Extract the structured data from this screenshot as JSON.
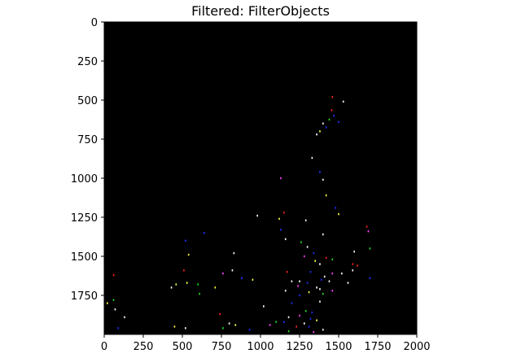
{
  "chart_data": {
    "type": "image",
    "title": "Filtered: FilterObjects",
    "xlabel": "",
    "ylabel": "",
    "xlim": [
      0,
      2000
    ],
    "ylim": [
      2000,
      0
    ],
    "y_inverted": true,
    "background_color": "#000000",
    "x_ticks": [
      0,
      250,
      500,
      750,
      1000,
      1250,
      1500,
      1750,
      2000
    ],
    "y_ticks": [
      0,
      250,
      500,
      750,
      1000,
      1250,
      1500,
      1750
    ],
    "grid": false,
    "legend": "none",
    "point_colors": [
      "#ff2020",
      "#2030ff",
      "#20e020",
      "#ffffff",
      "#ffff40",
      "#ff40ff",
      "#40ffff"
    ],
    "points": [
      {
        "x": 1460,
        "y": 480,
        "c": 0
      },
      {
        "x": 1530,
        "y": 510,
        "c": 3
      },
      {
        "x": 1455,
        "y": 565,
        "c": 0
      },
      {
        "x": 1470,
        "y": 600,
        "c": 1
      },
      {
        "x": 1440,
        "y": 625,
        "c": 2
      },
      {
        "x": 1400,
        "y": 650,
        "c": 3
      },
      {
        "x": 1420,
        "y": 675,
        "c": 1
      },
      {
        "x": 1380,
        "y": 700,
        "c": 4
      },
      {
        "x": 1500,
        "y": 640,
        "c": 1
      },
      {
        "x": 1360,
        "y": 720,
        "c": 3
      },
      {
        "x": 1330,
        "y": 870,
        "c": 3
      },
      {
        "x": 1380,
        "y": 960,
        "c": 1
      },
      {
        "x": 1130,
        "y": 1000,
        "c": 5
      },
      {
        "x": 1400,
        "y": 1010,
        "c": 3
      },
      {
        "x": 1420,
        "y": 1110,
        "c": 4
      },
      {
        "x": 1480,
        "y": 1190,
        "c": 1
      },
      {
        "x": 1500,
        "y": 1230,
        "c": 4
      },
      {
        "x": 1150,
        "y": 1220,
        "c": 0
      },
      {
        "x": 980,
        "y": 1240,
        "c": 3
      },
      {
        "x": 1120,
        "y": 1260,
        "c": 4
      },
      {
        "x": 1290,
        "y": 1270,
        "c": 3
      },
      {
        "x": 1680,
        "y": 1310,
        "c": 0
      },
      {
        "x": 1690,
        "y": 1340,
        "c": 5
      },
      {
        "x": 1130,
        "y": 1330,
        "c": 1
      },
      {
        "x": 1400,
        "y": 1360,
        "c": 3
      },
      {
        "x": 1160,
        "y": 1390,
        "c": 3
      },
      {
        "x": 640,
        "y": 1350,
        "c": 1
      },
      {
        "x": 520,
        "y": 1400,
        "c": 1
      },
      {
        "x": 1260,
        "y": 1410,
        "c": 2
      },
      {
        "x": 1300,
        "y": 1440,
        "c": 3
      },
      {
        "x": 1700,
        "y": 1450,
        "c": 2
      },
      {
        "x": 1340,
        "y": 1480,
        "c": 1
      },
      {
        "x": 1600,
        "y": 1470,
        "c": 3
      },
      {
        "x": 830,
        "y": 1480,
        "c": 3
      },
      {
        "x": 540,
        "y": 1490,
        "c": 4
      },
      {
        "x": 1280,
        "y": 1500,
        "c": 5
      },
      {
        "x": 1420,
        "y": 1510,
        "c": 0
      },
      {
        "x": 1460,
        "y": 1520,
        "c": 2
      },
      {
        "x": 1350,
        "y": 1530,
        "c": 4
      },
      {
        "x": 1380,
        "y": 1550,
        "c": 3
      },
      {
        "x": 1590,
        "y": 1550,
        "c": 0
      },
      {
        "x": 1620,
        "y": 1560,
        "c": 0
      },
      {
        "x": 1590,
        "y": 1590,
        "c": 3
      },
      {
        "x": 510,
        "y": 1590,
        "c": 0
      },
      {
        "x": 820,
        "y": 1590,
        "c": 3
      },
      {
        "x": 1170,
        "y": 1600,
        "c": 0
      },
      {
        "x": 1320,
        "y": 1600,
        "c": 1
      },
      {
        "x": 1460,
        "y": 1610,
        "c": 5
      },
      {
        "x": 1520,
        "y": 1610,
        "c": 3
      },
      {
        "x": 1410,
        "y": 1630,
        "c": 3
      },
      {
        "x": 1700,
        "y": 1640,
        "c": 1
      },
      {
        "x": 1390,
        "y": 1650,
        "c": 1
      },
      {
        "x": 1250,
        "y": 1660,
        "c": 3
      },
      {
        "x": 1440,
        "y": 1660,
        "c": 3
      },
      {
        "x": 60,
        "y": 1620,
        "c": 0
      },
      {
        "x": 760,
        "y": 1610,
        "c": 5
      },
      {
        "x": 880,
        "y": 1640,
        "c": 1
      },
      {
        "x": 950,
        "y": 1650,
        "c": 4
      },
      {
        "x": 1200,
        "y": 1660,
        "c": 3
      },
      {
        "x": 1300,
        "y": 1670,
        "c": 1
      },
      {
        "x": 1560,
        "y": 1670,
        "c": 3
      },
      {
        "x": 1240,
        "y": 1690,
        "c": 5
      },
      {
        "x": 1360,
        "y": 1700,
        "c": 3
      },
      {
        "x": 530,
        "y": 1670,
        "c": 4
      },
      {
        "x": 600,
        "y": 1680,
        "c": 2
      },
      {
        "x": 460,
        "y": 1680,
        "c": 4
      },
      {
        "x": 430,
        "y": 1700,
        "c": 3
      },
      {
        "x": 710,
        "y": 1700,
        "c": 4
      },
      {
        "x": 1380,
        "y": 1710,
        "c": 3
      },
      {
        "x": 1460,
        "y": 1720,
        "c": 5
      },
      {
        "x": 1160,
        "y": 1720,
        "c": 3
      },
      {
        "x": 1310,
        "y": 1730,
        "c": 4
      },
      {
        "x": 1400,
        "y": 1740,
        "c": 2
      },
      {
        "x": 1250,
        "y": 1750,
        "c": 1
      },
      {
        "x": 610,
        "y": 1740,
        "c": 2
      },
      {
        "x": 60,
        "y": 1780,
        "c": 2
      },
      {
        "x": 20,
        "y": 1800,
        "c": 4
      },
      {
        "x": 1380,
        "y": 1790,
        "c": 3
      },
      {
        "x": 1200,
        "y": 1800,
        "c": 1
      },
      {
        "x": 1020,
        "y": 1820,
        "c": 3
      },
      {
        "x": 70,
        "y": 1840,
        "c": 3
      },
      {
        "x": 1290,
        "y": 1850,
        "c": 2
      },
      {
        "x": 1330,
        "y": 1860,
        "c": 1
      },
      {
        "x": 740,
        "y": 1870,
        "c": 0
      },
      {
        "x": 130,
        "y": 1890,
        "c": 3
      },
      {
        "x": 1180,
        "y": 1890,
        "c": 3
      },
      {
        "x": 1250,
        "y": 1880,
        "c": 5
      },
      {
        "x": 1320,
        "y": 1900,
        "c": 1
      },
      {
        "x": 1360,
        "y": 1910,
        "c": 4
      },
      {
        "x": 1100,
        "y": 1920,
        "c": 2
      },
      {
        "x": 1150,
        "y": 1920,
        "c": 1
      },
      {
        "x": 1280,
        "y": 1930,
        "c": 3
      },
      {
        "x": 800,
        "y": 1930,
        "c": 3
      },
      {
        "x": 840,
        "y": 1940,
        "c": 4
      },
      {
        "x": 1060,
        "y": 1940,
        "c": 5
      },
      {
        "x": 1230,
        "y": 1950,
        "c": 0
      },
      {
        "x": 1310,
        "y": 1950,
        "c": 1
      },
      {
        "x": 450,
        "y": 1950,
        "c": 4
      },
      {
        "x": 520,
        "y": 1960,
        "c": 3
      },
      {
        "x": 760,
        "y": 1960,
        "c": 2
      },
      {
        "x": 90,
        "y": 1960,
        "c": 1
      },
      {
        "x": 930,
        "y": 1970,
        "c": 1
      },
      {
        "x": 1400,
        "y": 1970,
        "c": 3
      },
      {
        "x": 1180,
        "y": 1980,
        "c": 2
      },
      {
        "x": 1340,
        "y": 1985,
        "c": 5
      }
    ]
  }
}
